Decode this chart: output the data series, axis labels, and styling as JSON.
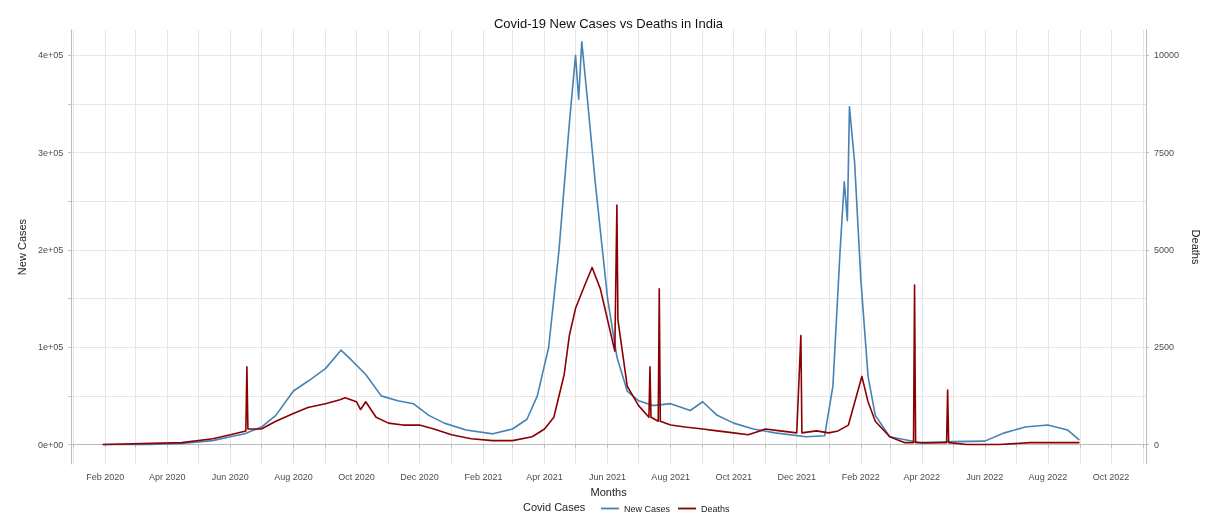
{
  "chart_data": {
    "type": "line",
    "title": "Covid-19 New Cases vs Deaths in India",
    "xlabel": "Months",
    "ylabel": "New Cases",
    "y2label": "Deaths",
    "legend_title": "Covid Cases",
    "legend": "bottom",
    "grid": true,
    "marker": "none",
    "line_style": "solid",
    "xlim": [
      "2019-12-30",
      "2022-11-04"
    ],
    "xticks": [
      {
        "value": "2020-01",
        "label": null
      },
      {
        "value": "2020-02",
        "label": "Feb 2020"
      },
      {
        "value": "2020-03",
        "label": null
      },
      {
        "value": "2020-04",
        "label": "Apr 2020"
      },
      {
        "value": "2020-05",
        "label": null
      },
      {
        "value": "2020-06",
        "label": "Jun 2020"
      },
      {
        "value": "2020-07",
        "label": null
      },
      {
        "value": "2020-08",
        "label": "Aug 2020"
      },
      {
        "value": "2020-09",
        "label": null
      },
      {
        "value": "2020-10",
        "label": "Oct 2020"
      },
      {
        "value": "2020-11",
        "label": null
      },
      {
        "value": "2020-12",
        "label": "Dec 2020"
      },
      {
        "value": "2021-01",
        "label": null
      },
      {
        "value": "2021-02",
        "label": "Feb 2021"
      },
      {
        "value": "2021-03",
        "label": null
      },
      {
        "value": "2021-04",
        "label": "Apr 2021"
      },
      {
        "value": "2021-05",
        "label": null
      },
      {
        "value": "2021-06",
        "label": "Jun 2021"
      },
      {
        "value": "2021-07",
        "label": null
      },
      {
        "value": "2021-08",
        "label": "Aug 2021"
      },
      {
        "value": "2021-09",
        "label": null
      },
      {
        "value": "2021-10",
        "label": "Oct 2021"
      },
      {
        "value": "2021-11",
        "label": null
      },
      {
        "value": "2021-12",
        "label": "Dec 2021"
      },
      {
        "value": "2022-01",
        "label": null
      },
      {
        "value": "2022-02",
        "label": "Feb 2022"
      },
      {
        "value": "2022-03",
        "label": null
      },
      {
        "value": "2022-04",
        "label": "Apr 2022"
      },
      {
        "value": "2022-05",
        "label": null
      },
      {
        "value": "2022-06",
        "label": "Jun 2022"
      },
      {
        "value": "2022-07",
        "label": null
      },
      {
        "value": "2022-08",
        "label": "Aug 2022"
      },
      {
        "value": "2022-09",
        "label": null
      },
      {
        "value": "2022-10",
        "label": "Oct 2022"
      },
      {
        "value": "2022-11",
        "label": null
      }
    ],
    "ylim": [
      -20000,
      426000
    ],
    "yticks": [
      {
        "value": 0,
        "label": "0e+00"
      },
      {
        "value": 50000,
        "label": null
      },
      {
        "value": 100000,
        "label": "1e+05"
      },
      {
        "value": 150000,
        "label": null
      },
      {
        "value": 200000,
        "label": "2e+05"
      },
      {
        "value": 250000,
        "label": null
      },
      {
        "value": 300000,
        "label": "3e+05"
      },
      {
        "value": 350000,
        "label": null
      },
      {
        "value": 400000,
        "label": "4e+05"
      }
    ],
    "y2lim": [
      -500,
      10650
    ],
    "y2ticks": [
      0,
      2500,
      5000,
      7500,
      10000
    ],
    "series": [
      {
        "name": "New Cases",
        "color": "#4682b4",
        "x": [
          "2020-01-30",
          "2020-03-15",
          "2020-04-15",
          "2020-05-15",
          "2020-06-01",
          "2020-06-15",
          "2020-07-01",
          "2020-07-15",
          "2020-08-01",
          "2020-08-15",
          "2020-09-01",
          "2020-09-16",
          "2020-09-25",
          "2020-10-10",
          "2020-10-25",
          "2020-11-10",
          "2020-11-25",
          "2020-12-10",
          "2020-12-25",
          "2021-01-15",
          "2021-02-10",
          "2021-03-01",
          "2021-03-15",
          "2021-03-25",
          "2021-04-05",
          "2021-04-15",
          "2021-04-25",
          "2021-05-01",
          "2021-05-04",
          "2021-05-07",
          "2021-05-12",
          "2021-05-20",
          "2021-06-01",
          "2021-06-10",
          "2021-06-20",
          "2021-07-01",
          "2021-07-15",
          "2021-08-01",
          "2021-08-20",
          "2021-09-01",
          "2021-09-15",
          "2021-10-01",
          "2021-10-20",
          "2021-11-10",
          "2021-12-10",
          "2021-12-28",
          "2022-01-05",
          "2022-01-12",
          "2022-01-16",
          "2022-01-19",
          "2022-01-21",
          "2022-01-26",
          "2022-02-01",
          "2022-02-08",
          "2022-02-15",
          "2022-03-01",
          "2022-04-01",
          "2022-05-01",
          "2022-06-01",
          "2022-06-20",
          "2022-07-10",
          "2022-08-01",
          "2022-08-20",
          "2022-08-31"
        ],
        "values": [
          0,
          0,
          1000,
          4000,
          8000,
          11000,
          18000,
          30000,
          55000,
          65000,
          78000,
          97000,
          88000,
          72000,
          50000,
          45000,
          42000,
          30000,
          22000,
          15000,
          11000,
          16000,
          26000,
          50000,
          100000,
          200000,
          330000,
          400000,
          355000,
          414000,
          360000,
          270000,
          150000,
          90000,
          55000,
          45000,
          40000,
          42000,
          35000,
          44000,
          30000,
          22000,
          16000,
          12000,
          8000,
          9000,
          60000,
          200000,
          270000,
          230000,
          347000,
          290000,
          170000,
          70000,
          30000,
          8000,
          1500,
          3000,
          3500,
          12000,
          18000,
          20000,
          15000,
          5000
        ]
      },
      {
        "name": "Deaths",
        "color": "#8b0000",
        "axis": "y2",
        "x": [
          "2020-01-30",
          "2020-04-15",
          "2020-05-15",
          "2020-06-01",
          "2020-06-16",
          "2020-06-17",
          "2020-06-18",
          "2020-07-01",
          "2020-07-15",
          "2020-08-01",
          "2020-08-15",
          "2020-09-01",
          "2020-09-15",
          "2020-09-20",
          "2020-10-01",
          "2020-10-05",
          "2020-10-10",
          "2020-10-20",
          "2020-11-01",
          "2020-11-15",
          "2020-12-01",
          "2020-12-15",
          "2021-01-01",
          "2021-01-20",
          "2021-02-10",
          "2021-03-01",
          "2021-03-20",
          "2021-04-01",
          "2021-04-10",
          "2021-04-20",
          "2021-04-25",
          "2021-05-01",
          "2021-05-10",
          "2021-05-17",
          "2021-05-25",
          "2021-06-01",
          "2021-06-08",
          "2021-06-10",
          "2021-06-11",
          "2021-06-20",
          "2021-07-01",
          "2021-07-11",
          "2021-07-12",
          "2021-07-13",
          "2021-07-20",
          "2021-07-21",
          "2021-07-22",
          "2021-08-01",
          "2021-08-15",
          "2021-09-01",
          "2021-09-15",
          "2021-10-01",
          "2021-10-15",
          "2021-11-01",
          "2021-11-15",
          "2021-12-01",
          "2021-12-05",
          "2021-12-06",
          "2021-12-20",
          "2022-01-01",
          "2022-01-10",
          "2022-01-20",
          "2022-02-02",
          "2022-02-08",
          "2022-02-15",
          "2022-03-01",
          "2022-03-15",
          "2022-03-24",
          "2022-03-25",
          "2022-03-26",
          "2022-04-10",
          "2022-04-25",
          "2022-04-26",
          "2022-04-27",
          "2022-05-15",
          "2022-06-15",
          "2022-07-15",
          "2022-08-15",
          "2022-08-31"
        ],
        "values": [
          0,
          50,
          150,
          250,
          350,
          2000,
          400,
          400,
          600,
          800,
          950,
          1050,
          1150,
          1200,
          1100,
          900,
          1100,
          700,
          550,
          500,
          500,
          400,
          250,
          150,
          100,
          100,
          200,
          400,
          700,
          1800,
          2800,
          3500,
          4100,
          4550,
          4000,
          3200,
          2400,
          6150,
          3200,
          1500,
          1000,
          700,
          2000,
          700,
          600,
          4000,
          600,
          500,
          450,
          400,
          350,
          300,
          250,
          400,
          350,
          300,
          2800,
          300,
          350,
          300,
          350,
          500,
          1750,
          1100,
          600,
          200,
          50,
          50,
          4100,
          50,
          50,
          50,
          1400,
          50,
          0,
          0,
          50,
          50,
          50
        ]
      }
    ]
  }
}
